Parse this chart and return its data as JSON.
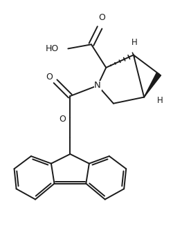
{
  "bg_color": "#ffffff",
  "line_color": "#1a1a1a",
  "line_width": 1.4,
  "figsize": [
    2.76,
    3.3
  ],
  "dpi": 100,
  "xlim": [
    0,
    10
  ],
  "ylim": [
    0,
    12
  ]
}
